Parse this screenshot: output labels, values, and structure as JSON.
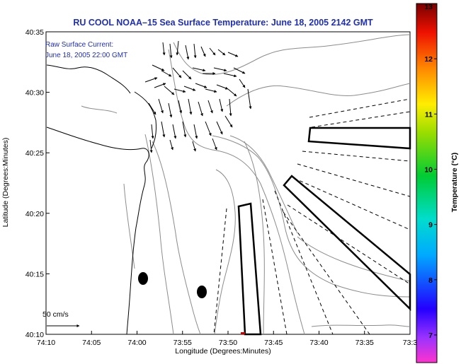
{
  "chart_data": {
    "type": "map",
    "title": "RU COOL  NOAA–15  Sea Surface Temperature:  June 18, 2005 2142 GMT",
    "xlabel": "Longitude (Degrees:Minutes)",
    "ylabel": "Latitude (Degrees:Minutes)",
    "x_ticks": [
      "74:10",
      "74:05",
      "74:00",
      "73:55",
      "73:50",
      "73:45",
      "73:40",
      "73:35",
      "73:3"
    ],
    "y_ticks": [
      "40:35",
      "40:30",
      "40:25",
      "40:20",
      "40:15",
      "40:10"
    ],
    "legend_lines": [
      "Raw Surface Current:",
      "June 18, 2005 22:00 GMT"
    ],
    "scale_label": "50 cm/s",
    "colorbar": {
      "label": "Temperature (°C)",
      "range": [
        6.5,
        13
      ],
      "ticks": [
        "7",
        "8",
        "9",
        "10",
        "11",
        "12",
        "13"
      ]
    },
    "colors": {
      "title": "#1f2fb4",
      "contour": "#8c8c8c",
      "coast": "#000000"
    }
  }
}
